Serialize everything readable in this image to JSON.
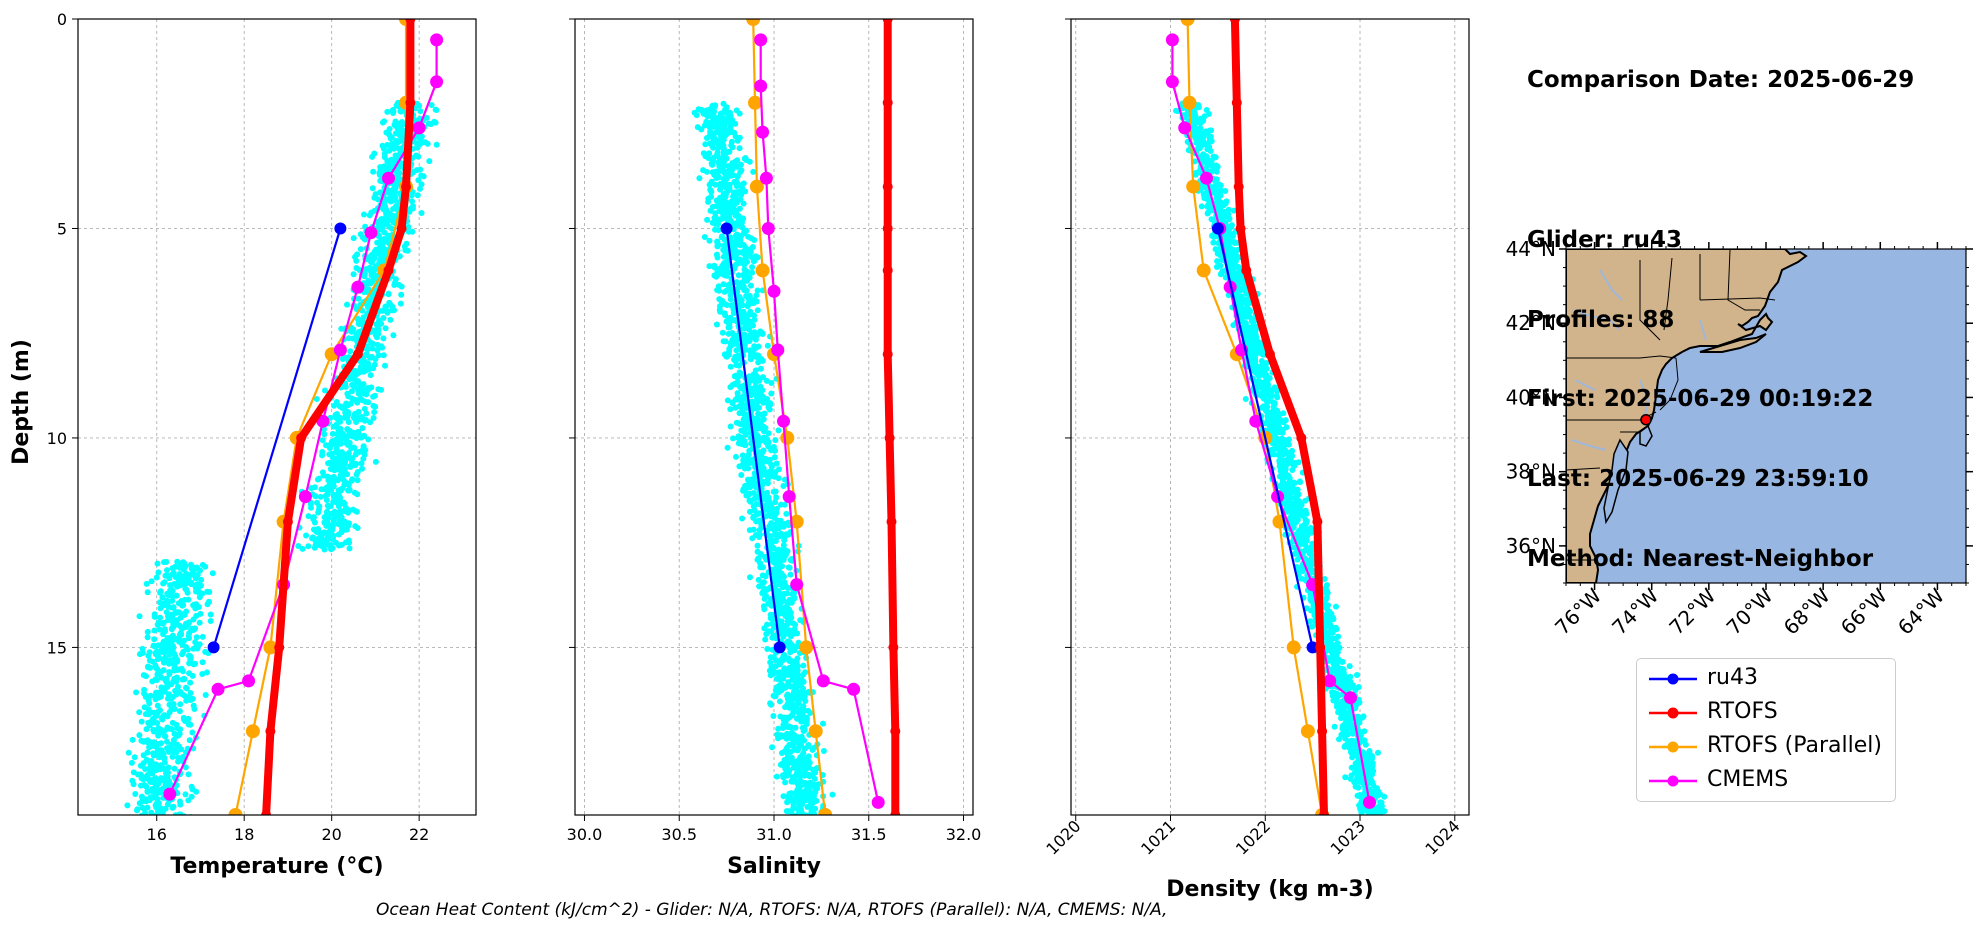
{
  "info": {
    "comparison_date": "Comparison Date: 2025-06-29",
    "glider": "Glider: ru43",
    "profiles": "Profiles: 88",
    "first": "First: 2025-06-29 00:19:22",
    "last": "Last: 2025-06-29 23:59:10",
    "method": "Method: Nearest-Neighbor"
  },
  "footer": "Ocean Heat Content (kJ/cm^2) - Glider: N/A,  RTOFS: N/A,  RTOFS (Parallel): N/A,  CMEMS: N/A,",
  "colors": {
    "glider": "#0000ff",
    "rtofs": "#ff0000",
    "rtofs_parallel": "#ffa500",
    "cmems": "#ff00ff",
    "scatter": "#00ffff",
    "land": "#d2b48c",
    "ocean": "#97b6e1"
  },
  "legend": [
    {
      "label": "ru43",
      "color": "#0000ff"
    },
    {
      "label": "RTOFS",
      "color": "#ff0000"
    },
    {
      "label": "RTOFS (Parallel)",
      "color": "#ffa500"
    },
    {
      "label": "CMEMS",
      "color": "#ff00ff"
    }
  ],
  "chart_data": [
    {
      "type": "line",
      "xlabel": "Temperature (°C)",
      "ylabel": "Depth (m)",
      "xlim": [
        14.2,
        23.3
      ],
      "ylim": [
        19,
        0
      ],
      "xticks": [
        16,
        18,
        20,
        22
      ],
      "yticks": [
        0,
        5,
        10,
        15
      ],
      "grid": true,
      "scatter_cloud": {
        "name": "glider observations",
        "color": "#00ffff"
      },
      "series": [
        {
          "key": "glider",
          "x": [
            20.2,
            17.3
          ],
          "y": [
            5,
            15
          ]
        },
        {
          "key": "rtofs",
          "x": [
            21.8,
            21.8,
            21.7,
            21.6,
            21.3,
            20.6,
            19.3,
            19.0,
            18.8,
            18.6,
            18.5
          ],
          "y": [
            0,
            2,
            4,
            5,
            6,
            8,
            10,
            12,
            15,
            17,
            19
          ]
        },
        {
          "key": "rtofs_parallel",
          "x": [
            21.7,
            21.7,
            21.7,
            21.2,
            20.0,
            19.2,
            18.9,
            18.6,
            18.2,
            17.8
          ],
          "y": [
            0,
            2,
            4,
            6,
            8,
            10,
            12,
            15,
            17,
            19
          ]
        },
        {
          "key": "cmems",
          "x": [
            22.4,
            22.4,
            22.0,
            21.3,
            20.9,
            20.6,
            20.2,
            19.8,
            19.4,
            18.9,
            18.1,
            17.4,
            16.3
          ],
          "y": [
            0.5,
            1.5,
            2.6,
            3.8,
            5.1,
            6.4,
            7.9,
            9.6,
            11.4,
            13.5,
            15.8,
            16.0,
            18.5
          ]
        }
      ]
    },
    {
      "type": "line",
      "xlabel": "Salinity",
      "ylabel": "",
      "xlim": [
        29.95,
        32.05
      ],
      "ylim": [
        19,
        0
      ],
      "xticks": [
        30.0,
        30.5,
        31.0,
        31.5,
        32.0
      ],
      "yticks": [
        0,
        5,
        10,
        15
      ],
      "grid": true,
      "scatter_cloud": {
        "name": "glider observations",
        "color": "#00ffff"
      },
      "series": [
        {
          "key": "glider",
          "x": [
            30.75,
            31.03
          ],
          "y": [
            5,
            15
          ]
        },
        {
          "key": "rtofs",
          "x": [
            31.6,
            31.6,
            31.6,
            31.6,
            31.6,
            31.6,
            31.61,
            31.62,
            31.63,
            31.64,
            31.64
          ],
          "y": [
            0,
            2,
            4,
            5,
            6,
            8,
            10,
            12,
            15,
            17,
            19
          ]
        },
        {
          "key": "rtofs_parallel",
          "x": [
            30.89,
            30.9,
            30.91,
            30.94,
            31.0,
            31.07,
            31.12,
            31.17,
            31.22,
            31.27
          ],
          "y": [
            0,
            2,
            4,
            6,
            8,
            10,
            12,
            15,
            17,
            19
          ]
        },
        {
          "key": "cmems",
          "x": [
            30.93,
            30.93,
            30.94,
            30.96,
            30.97,
            31.0,
            31.02,
            31.05,
            31.08,
            31.12,
            31.26,
            31.42,
            31.55
          ],
          "y": [
            0.5,
            1.6,
            2.7,
            3.8,
            5.0,
            6.5,
            7.9,
            9.6,
            11.4,
            13.5,
            15.8,
            16.0,
            18.7
          ]
        }
      ]
    },
    {
      "type": "line",
      "xlabel": "Density (kg m-3)",
      "ylabel": "",
      "xlim": [
        1019.95,
        1024.15
      ],
      "ylim": [
        19,
        0
      ],
      "xticks": [
        1020,
        1021,
        1022,
        1023,
        1024
      ],
      "yticks": [
        0,
        5,
        10,
        15
      ],
      "grid": true,
      "scatter_cloud": {
        "name": "glider observations",
        "color": "#00ffff"
      },
      "series": [
        {
          "key": "glider",
          "x": [
            1021.5,
            1022.5
          ],
          "y": [
            5,
            15
          ]
        },
        {
          "key": "rtofs",
          "x": [
            1021.68,
            1021.7,
            1021.72,
            1021.74,
            1021.8,
            1022.05,
            1022.38,
            1022.55,
            1022.58,
            1022.6,
            1022.62
          ],
          "y": [
            0,
            2,
            4,
            5,
            6,
            8,
            10,
            12,
            15,
            17,
            19
          ]
        },
        {
          "key": "rtofs_parallel",
          "x": [
            1021.18,
            1021.2,
            1021.24,
            1021.35,
            1021.7,
            1022.0,
            1022.15,
            1022.3,
            1022.45,
            1022.6
          ],
          "y": [
            0,
            2,
            4,
            6,
            8,
            10,
            12,
            15,
            17,
            19
          ]
        },
        {
          "key": "cmems",
          "x": [
            1021.02,
            1021.02,
            1021.15,
            1021.38,
            1021.52,
            1021.63,
            1021.75,
            1021.9,
            1022.13,
            1022.5,
            1022.68,
            1022.9,
            1023.1
          ],
          "y": [
            0.5,
            1.5,
            2.6,
            3.8,
            5.0,
            6.4,
            7.9,
            9.6,
            11.4,
            13.5,
            15.8,
            16.2,
            18.7
          ]
        }
      ]
    },
    {
      "type": "map",
      "lon_range": [
        -77,
        -63
      ],
      "lat_range": [
        35,
        44
      ],
      "lat_ticks": [
        "36°N",
        "38°N",
        "40°N",
        "42°N",
        "44°N"
      ],
      "lon_ticks": [
        "76°W",
        "74°W",
        "72°W",
        "70°W",
        "68°W",
        "66°W",
        "64°W"
      ],
      "glider_location": {
        "lon": -74.2,
        "lat": 39.4,
        "color": "#ff0000"
      }
    }
  ]
}
